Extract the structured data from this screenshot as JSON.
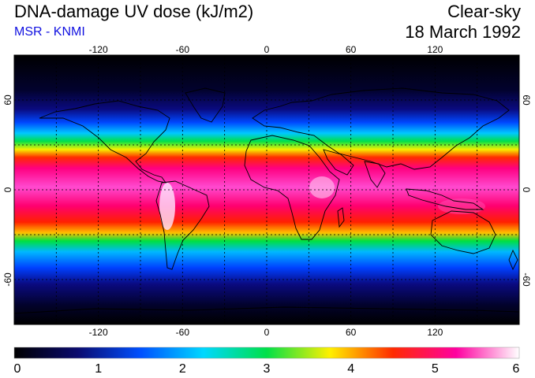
{
  "header": {
    "title": "DNA-damage UV dose (kJ/m2)",
    "source": "MSR - KNMI",
    "condition": "Clear-sky",
    "date": "18 March 1992"
  },
  "map": {
    "lon_ticks": [
      "-120",
      "-60",
      "0",
      "60",
      "120"
    ],
    "lat_ticks": [
      "60",
      "0",
      "-60"
    ],
    "lon_range": [
      -180,
      180
    ],
    "lat_range": [
      -90,
      90
    ],
    "gridline_lons": [
      -150,
      -120,
      -90,
      -60,
      -30,
      0,
      30,
      60,
      90,
      120,
      150
    ],
    "gridline_lats": [
      -60,
      -30,
      0,
      30,
      60
    ]
  },
  "colorbar": {
    "labels": [
      "0",
      "1",
      "2",
      "3",
      "4",
      "5",
      "6"
    ],
    "min": 0,
    "max": 6,
    "colors": [
      "#000000",
      "#0a0a6e",
      "#0050ff",
      "#00d8ff",
      "#00e048",
      "#fff000",
      "#ff2a00",
      "#ff00a0",
      "#ffffff"
    ]
  }
}
